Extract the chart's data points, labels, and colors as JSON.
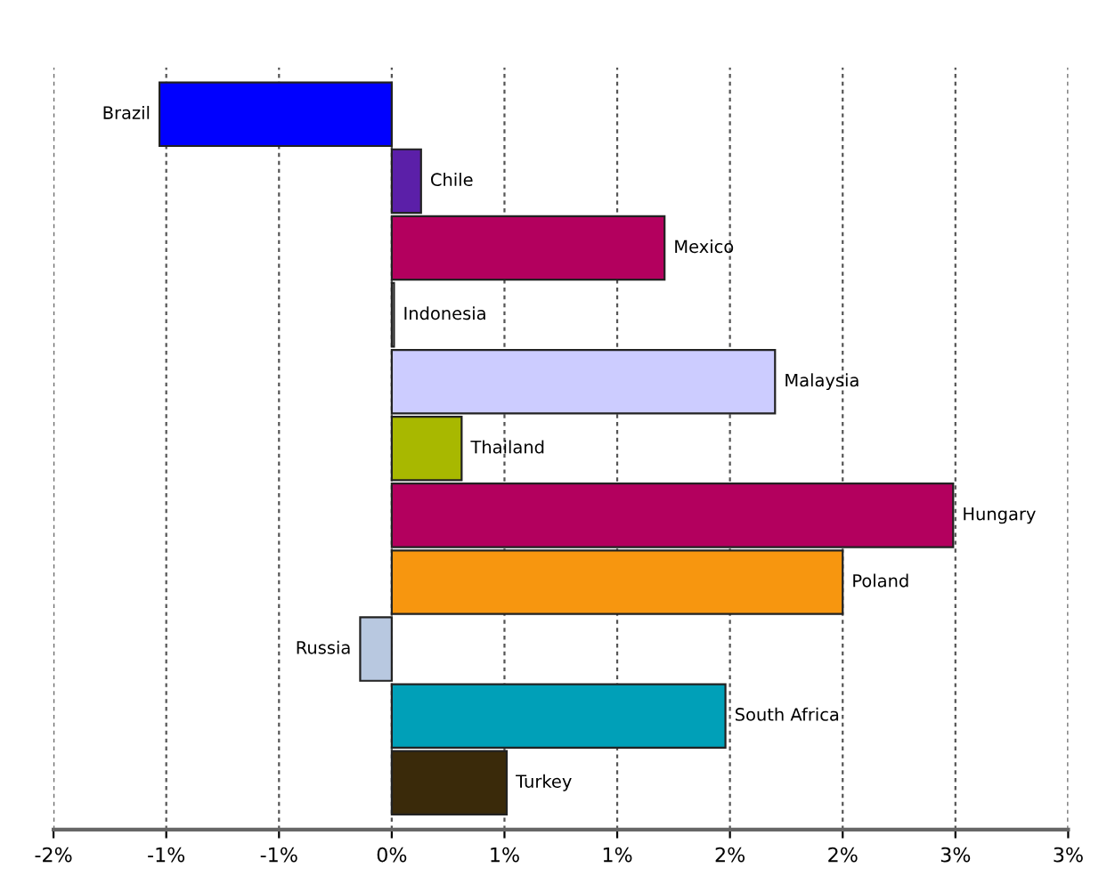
{
  "chart_data": {
    "type": "bar",
    "orientation": "horizontal",
    "categories": [
      "Brazil",
      "Chile",
      "Mexico",
      "Indonesia",
      "Malaysia",
      "Thailand",
      "Hungary",
      "Poland",
      "Russia",
      "South Africa",
      "Turkey"
    ],
    "values": [
      -1.03,
      0.13,
      1.21,
      0.01,
      1.7,
      0.31,
      2.49,
      2.0,
      -0.14,
      1.48,
      0.51
    ],
    "colors": [
      "#0000ff",
      "#5b1fa8",
      "#b3005e",
      "#ffffff",
      "#ccccff",
      "#a8b800",
      "#b3005e",
      "#f7960f",
      "#b8c8e0",
      "#00a0b8",
      "#3a2a0a"
    ],
    "xlim": [
      -1.5,
      3.0
    ],
    "xticks": [
      {
        "value": -1.5,
        "label": "-2%"
      },
      {
        "value": -1.0,
        "label": "-1%"
      },
      {
        "value": -0.5,
        "label": "-1%"
      },
      {
        "value": 0,
        "label": "0%"
      },
      {
        "value": 0.5,
        "label": "1%"
      },
      {
        "value": 1.0,
        "label": "1%"
      },
      {
        "value": 1.5,
        "label": "2%"
      },
      {
        "value": 2.0,
        "label": "2%"
      },
      {
        "value": 2.5,
        "label": "3%"
      },
      {
        "value": 3.0,
        "label": "3%"
      }
    ],
    "grid": "x"
  }
}
